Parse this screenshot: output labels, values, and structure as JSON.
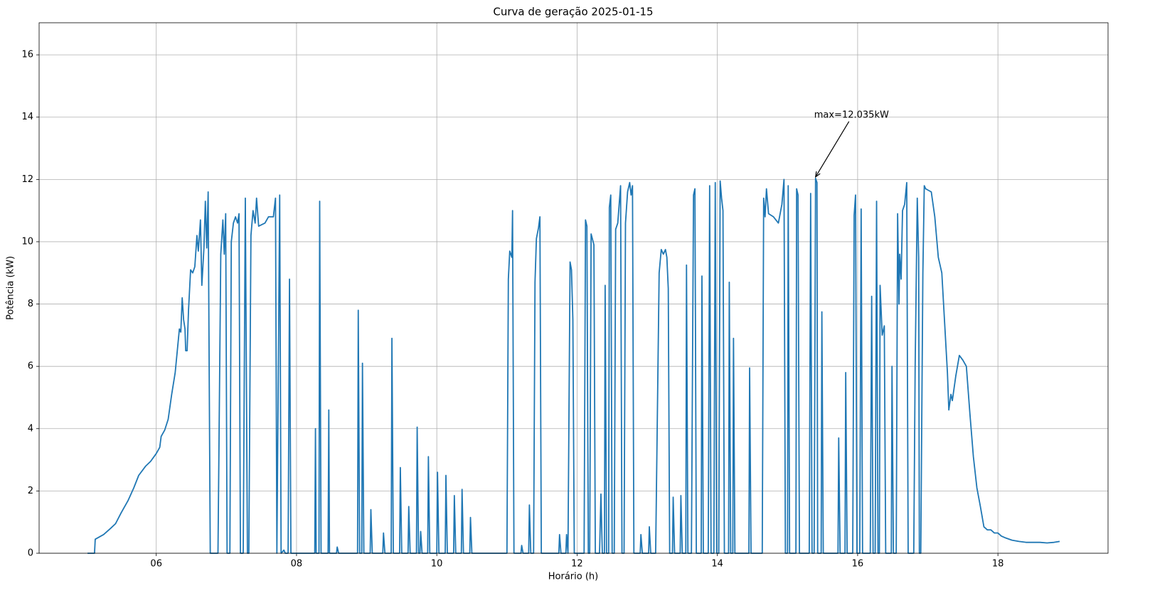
{
  "chart_data": {
    "type": "line",
    "title": "Curva de geração 2025-01-15",
    "x_label": "Horário (h)",
    "y_label": "Potência (kW)",
    "xlim": [
      4.33,
      19.57
    ],
    "ylim": [
      0,
      17.03
    ],
    "xticks": [
      {
        "value": 6,
        "label": "06"
      },
      {
        "value": 8,
        "label": "08"
      },
      {
        "value": 10,
        "label": "10"
      },
      {
        "value": 12,
        "label": "12"
      },
      {
        "value": 14,
        "label": "14"
      },
      {
        "value": 16,
        "label": "16"
      },
      {
        "value": 18,
        "label": "18"
      }
    ],
    "yticks": [
      0,
      2,
      4,
      6,
      8,
      10,
      12,
      14,
      16
    ],
    "grid": true,
    "annotation": {
      "text": "max=12.035kW",
      "x": 15.4,
      "y": 12.035
    },
    "x": [
      5.02,
      5.12,
      5.13,
      5.25,
      5.35,
      5.42,
      5.5,
      5.6,
      5.68,
      5.75,
      5.85,
      5.92,
      6.0,
      6.05,
      6.07,
      6.12,
      6.17,
      6.22,
      6.27,
      6.3,
      6.33,
      6.35,
      6.37,
      6.39,
      6.41,
      6.42,
      6.44,
      6.46,
      6.49,
      6.52,
      6.55,
      6.58,
      6.6,
      6.63,
      6.65,
      6.68,
      6.7,
      6.72,
      6.74,
      6.77,
      6.88,
      6.92,
      6.95,
      6.97,
      6.99,
      7.01,
      7.05,
      7.07,
      7.1,
      7.13,
      7.16,
      7.18,
      7.2,
      7.24,
      7.27,
      7.3,
      7.32,
      7.35,
      7.38,
      7.41,
      7.43,
      7.46,
      7.55,
      7.6,
      7.67,
      7.7,
      7.72,
      7.76,
      7.78,
      7.82,
      7.84,
      7.88,
      7.9,
      7.92,
      8.26,
      8.27,
      8.28,
      8.32,
      8.33,
      8.35,
      8.45,
      8.46,
      8.47,
      8.57,
      8.58,
      8.6,
      8.87,
      8.88,
      8.9,
      8.93,
      8.94,
      8.96,
      9.05,
      9.06,
      9.08,
      9.23,
      9.24,
      9.26,
      9.35,
      9.36,
      9.38,
      9.47,
      9.48,
      9.5,
      9.59,
      9.6,
      9.62,
      9.71,
      9.72,
      9.74,
      9.76,
      9.77,
      9.79,
      9.87,
      9.88,
      9.9,
      10.0,
      10.01,
      10.03,
      10.12,
      10.13,
      10.15,
      10.24,
      10.25,
      10.27,
      10.35,
      10.36,
      10.38,
      10.47,
      10.48,
      10.5,
      11.0,
      11.02,
      11.04,
      11.07,
      11.08,
      11.1,
      11.2,
      11.21,
      11.23,
      11.31,
      11.32,
      11.34,
      11.38,
      11.4,
      11.42,
      11.45,
      11.47,
      11.49,
      11.74,
      11.75,
      11.77,
      11.84,
      11.85,
      11.87,
      11.9,
      11.92,
      11.94,
      11.96,
      12.1,
      12.12,
      12.14,
      12.16,
      12.18,
      12.2,
      12.24,
      12.26,
      12.32,
      12.34,
      12.36,
      12.39,
      12.4,
      12.42,
      12.45,
      12.46,
      12.48,
      12.5,
      12.53,
      12.55,
      12.58,
      12.62,
      12.64,
      12.67,
      12.69,
      12.72,
      12.75,
      12.77,
      12.79,
      12.81,
      12.9,
      12.91,
      12.93,
      13.02,
      13.03,
      13.05,
      13.12,
      13.17,
      13.2,
      13.23,
      13.26,
      13.28,
      13.3,
      13.32,
      13.36,
      13.37,
      13.39,
      13.47,
      13.48,
      13.5,
      13.55,
      13.56,
      13.58,
      13.63,
      13.66,
      13.68,
      13.7,
      13.77,
      13.78,
      13.8,
      13.87,
      13.89,
      13.91,
      13.95,
      13.97,
      13.99,
      14.02,
      14.04,
      14.06,
      14.08,
      14.1,
      14.16,
      14.17,
      14.19,
      14.22,
      14.23,
      14.25,
      14.45,
      14.46,
      14.48,
      14.64,
      14.66,
      14.68,
      14.7,
      14.73,
      14.8,
      14.87,
      14.92,
      14.95,
      14.97,
      15.0,
      15.01,
      15.03,
      15.12,
      15.13,
      15.15,
      15.17,
      15.31,
      15.33,
      15.35,
      15.38,
      15.4,
      15.42,
      15.43,
      15.48,
      15.49,
      15.51,
      15.72,
      15.73,
      15.75,
      15.82,
      15.83,
      15.85,
      15.93,
      15.95,
      15.97,
      15.99,
      16.03,
      16.05,
      16.07,
      16.18,
      16.2,
      16.22,
      16.25,
      16.27,
      16.29,
      16.31,
      16.32,
      16.35,
      16.38,
      16.4,
      16.48,
      16.49,
      16.51,
      16.55,
      16.57,
      16.59,
      16.6,
      16.62,
      16.64,
      16.67,
      16.7,
      16.72,
      16.8,
      16.82,
      16.85,
      16.87,
      16.88,
      16.9,
      16.93,
      16.95,
      16.97,
      17.05,
      17.1,
      17.15,
      17.2,
      17.25,
      17.28,
      17.3,
      17.33,
      17.35,
      17.4,
      17.45,
      17.5,
      17.55,
      17.6,
      17.65,
      17.7,
      17.75,
      17.8,
      17.85,
      17.9,
      17.95,
      18.0,
      18.05,
      18.1,
      18.2,
      18.3,
      18.4,
      18.5,
      18.6,
      18.7,
      18.8,
      18.88
    ],
    "series": [
      {
        "name": "Potência",
        "color": "#1f77b4",
        "values": [
          0,
          0,
          0.45,
          0.6,
          0.8,
          0.95,
          1.3,
          1.7,
          2.1,
          2.5,
          2.8,
          2.95,
          3.2,
          3.4,
          3.75,
          3.95,
          4.3,
          5.1,
          5.8,
          6.5,
          7.2,
          7.1,
          8.2,
          7.5,
          7.2,
          6.5,
          6.5,
          7.8,
          9.1,
          9.0,
          9.2,
          10.2,
          9.7,
          10.7,
          8.6,
          9.8,
          11.3,
          9.8,
          11.6,
          0,
          0,
          9.6,
          10.7,
          9.6,
          10.9,
          0,
          0,
          10.0,
          10.6,
          10.8,
          10.6,
          10.9,
          0,
          0,
          11.4,
          0,
          0,
          10.2,
          11.0,
          10.6,
          11.4,
          10.5,
          10.6,
          10.8,
          10.8,
          11.4,
          0,
          11.5,
          0,
          0.1,
          0,
          0,
          8.8,
          0,
          0,
          4.0,
          0,
          0,
          11.3,
          0,
          0,
          4.6,
          0,
          0,
          0.2,
          0,
          0,
          7.8,
          0,
          0,
          6.1,
          0,
          0,
          1.4,
          0,
          0,
          0.65,
          0,
          0,
          6.9,
          0,
          0,
          2.75,
          0,
          0,
          1.5,
          0,
          0,
          4.05,
          0,
          0,
          0.7,
          0,
          0,
          3.1,
          0,
          0,
          2.6,
          0,
          0,
          2.5,
          0,
          0,
          1.85,
          0,
          0,
          2.05,
          0,
          0,
          1.15,
          0,
          0,
          8.8,
          9.7,
          9.5,
          11.0,
          0,
          0,
          0.25,
          0,
          0,
          1.55,
          0,
          0,
          8.7,
          10.1,
          10.45,
          10.8,
          0,
          0,
          0.6,
          0,
          0,
          0.6,
          0,
          9.35,
          9.1,
          7.5,
          0,
          0,
          10.7,
          10.5,
          0,
          0,
          10.25,
          9.9,
          0,
          0,
          1.9,
          0,
          0,
          8.6,
          0,
          0,
          11.1,
          11.5,
          0,
          0,
          10.4,
          10.6,
          11.8,
          0,
          0,
          10.6,
          11.6,
          11.9,
          11.5,
          11.8,
          0,
          0,
          0.6,
          0,
          0,
          0.85,
          0,
          0,
          9.0,
          9.75,
          9.6,
          9.75,
          9.5,
          8.5,
          0,
          0,
          1.8,
          0,
          0,
          1.85,
          0,
          0,
          9.25,
          0,
          0,
          11.5,
          11.7,
          0,
          0,
          8.9,
          0,
          0,
          11.8,
          0,
          0,
          11.9,
          0,
          0,
          11.95,
          11.4,
          11.0,
          0,
          0,
          8.7,
          0,
          0,
          6.9,
          0,
          0,
          5.95,
          0,
          0,
          11.4,
          10.8,
          11.7,
          10.9,
          10.8,
          10.6,
          11.2,
          12.0,
          0,
          0,
          11.8,
          0,
          0,
          11.7,
          11.5,
          0,
          0,
          11.55,
          0,
          0,
          12.035,
          11.9,
          0,
          0,
          7.75,
          0,
          0,
          3.7,
          0,
          0,
          5.8,
          0,
          0,
          10.85,
          11.5,
          0,
          0,
          11.05,
          0,
          0,
          8.25,
          0,
          0,
          11.3,
          0,
          0,
          8.6,
          7.0,
          7.3,
          0,
          0,
          6.0,
          0,
          0,
          10.9,
          8.0,
          9.6,
          8.8,
          11.0,
          11.2,
          11.9,
          0,
          0,
          6.0,
          11.4,
          9.5,
          0,
          0,
          9.0,
          11.8,
          11.7,
          11.6,
          10.8,
          9.5,
          9.0,
          7.0,
          5.8,
          4.6,
          5.1,
          4.9,
          5.7,
          6.35,
          6.2,
          6.0,
          4.5,
          3.1,
          2.1,
          1.5,
          0.85,
          0.75,
          0.75,
          0.65,
          0.65,
          0.55,
          0.5,
          0.42,
          0.38,
          0.35,
          0.35,
          0.35,
          0.33,
          0.35,
          0.38
        ]
      }
    ]
  }
}
